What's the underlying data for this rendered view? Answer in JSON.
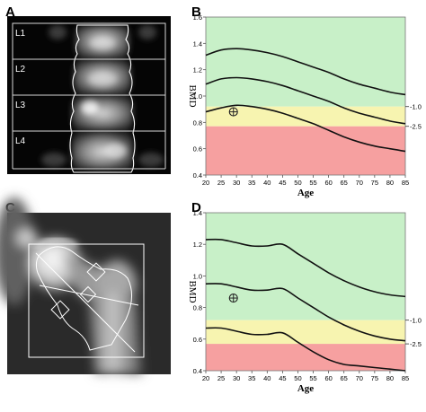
{
  "panels": {
    "A": {
      "letter": "A",
      "vertebra_labels": [
        "L1",
        "L2",
        "L3",
        "L4"
      ]
    },
    "B": {
      "letter": "B"
    },
    "C": {
      "letter": "C"
    },
    "D": {
      "letter": "D"
    }
  },
  "colors": {
    "normal_zone": "#c8f0c8",
    "osteopenia_zone": "#f7f4b0",
    "osteoporosis_zone": "#f6a0a0",
    "curve": "#111111",
    "xray_background": "#050505"
  },
  "chart_data": [
    {
      "panel": "B",
      "type": "line",
      "xlabel": "Age",
      "ylabel": "BMD",
      "x_ticks": [
        20,
        25,
        30,
        35,
        40,
        45,
        50,
        55,
        60,
        65,
        70,
        75,
        80,
        85
      ],
      "y_ticks": [
        "0.4",
        "0.6",
        "0.8",
        "1.0",
        "1.2",
        "1.4",
        "1.6"
      ],
      "xlim": [
        20,
        85
      ],
      "ylim": [
        0.4,
        1.6
      ],
      "zones": [
        {
          "name": "normal",
          "from": 0.92,
          "to": 1.6
        },
        {
          "name": "osteopenia",
          "from": 0.77,
          "to": 0.92
        },
        {
          "name": "osteoporosis",
          "from": 0.4,
          "to": 0.77
        }
      ],
      "zone_labels": [
        {
          "text": "-1.0",
          "y": 0.92
        },
        {
          "text": "-2.5",
          "y": 0.77
        }
      ],
      "series": [
        {
          "x": [
            20,
            25,
            30,
            35,
            40,
            45,
            50,
            55,
            60,
            65,
            70,
            75,
            80,
            85
          ],
          "y": [
            1.31,
            1.35,
            1.36,
            1.35,
            1.33,
            1.3,
            1.26,
            1.22,
            1.18,
            1.13,
            1.09,
            1.06,
            1.03,
            1.01
          ]
        },
        {
          "x": [
            20,
            25,
            30,
            35,
            40,
            45,
            50,
            55,
            60,
            65,
            70,
            75,
            80,
            85
          ],
          "y": [
            1.09,
            1.13,
            1.14,
            1.13,
            1.11,
            1.08,
            1.04,
            1.0,
            0.96,
            0.91,
            0.87,
            0.84,
            0.81,
            0.79
          ]
        },
        {
          "x": [
            20,
            25,
            30,
            35,
            40,
            45,
            50,
            55,
            60,
            65,
            70,
            75,
            80,
            85
          ],
          "y": [
            0.88,
            0.91,
            0.93,
            0.92,
            0.9,
            0.87,
            0.83,
            0.79,
            0.74,
            0.69,
            0.65,
            0.62,
            0.6,
            0.58
          ]
        }
      ],
      "marker": {
        "x": 29,
        "y": 0.88
      }
    },
    {
      "panel": "D",
      "type": "line",
      "xlabel": "Age",
      "ylabel": "BMD",
      "x_ticks": [
        20,
        25,
        30,
        35,
        40,
        45,
        50,
        55,
        60,
        65,
        70,
        75,
        80,
        85
      ],
      "y_ticks": [
        "0.4",
        "0.6",
        "0.8",
        "1.0",
        "1.2",
        "1.4"
      ],
      "xlim": [
        20,
        85
      ],
      "ylim": [
        0.4,
        1.4
      ],
      "zones": [
        {
          "name": "normal",
          "from": 0.72,
          "to": 1.4
        },
        {
          "name": "osteopenia",
          "from": 0.57,
          "to": 0.72
        },
        {
          "name": "osteoporosis",
          "from": 0.4,
          "to": 0.57
        }
      ],
      "zone_labels": [
        {
          "text": "-1.0",
          "y": 0.72
        },
        {
          "text": "-2.5",
          "y": 0.57
        }
      ],
      "series": [
        {
          "x": [
            20,
            25,
            30,
            35,
            40,
            45,
            50,
            55,
            60,
            65,
            70,
            75,
            80,
            85
          ],
          "y": [
            1.23,
            1.23,
            1.21,
            1.19,
            1.19,
            1.2,
            1.14,
            1.08,
            1.02,
            0.97,
            0.93,
            0.9,
            0.88,
            0.87
          ]
        },
        {
          "x": [
            20,
            25,
            30,
            35,
            40,
            45,
            50,
            55,
            60,
            65,
            70,
            75,
            80,
            85
          ],
          "y": [
            0.95,
            0.95,
            0.93,
            0.91,
            0.91,
            0.92,
            0.86,
            0.8,
            0.74,
            0.69,
            0.65,
            0.62,
            0.6,
            0.59
          ]
        },
        {
          "x": [
            20,
            25,
            30,
            35,
            40,
            45,
            50,
            55,
            60,
            65,
            70,
            75,
            80,
            85
          ],
          "y": [
            0.67,
            0.67,
            0.65,
            0.63,
            0.63,
            0.64,
            0.58,
            0.52,
            0.47,
            0.44,
            0.43,
            0.42,
            0.41,
            0.4
          ]
        }
      ],
      "marker": {
        "x": 29,
        "y": 0.86
      }
    }
  ]
}
